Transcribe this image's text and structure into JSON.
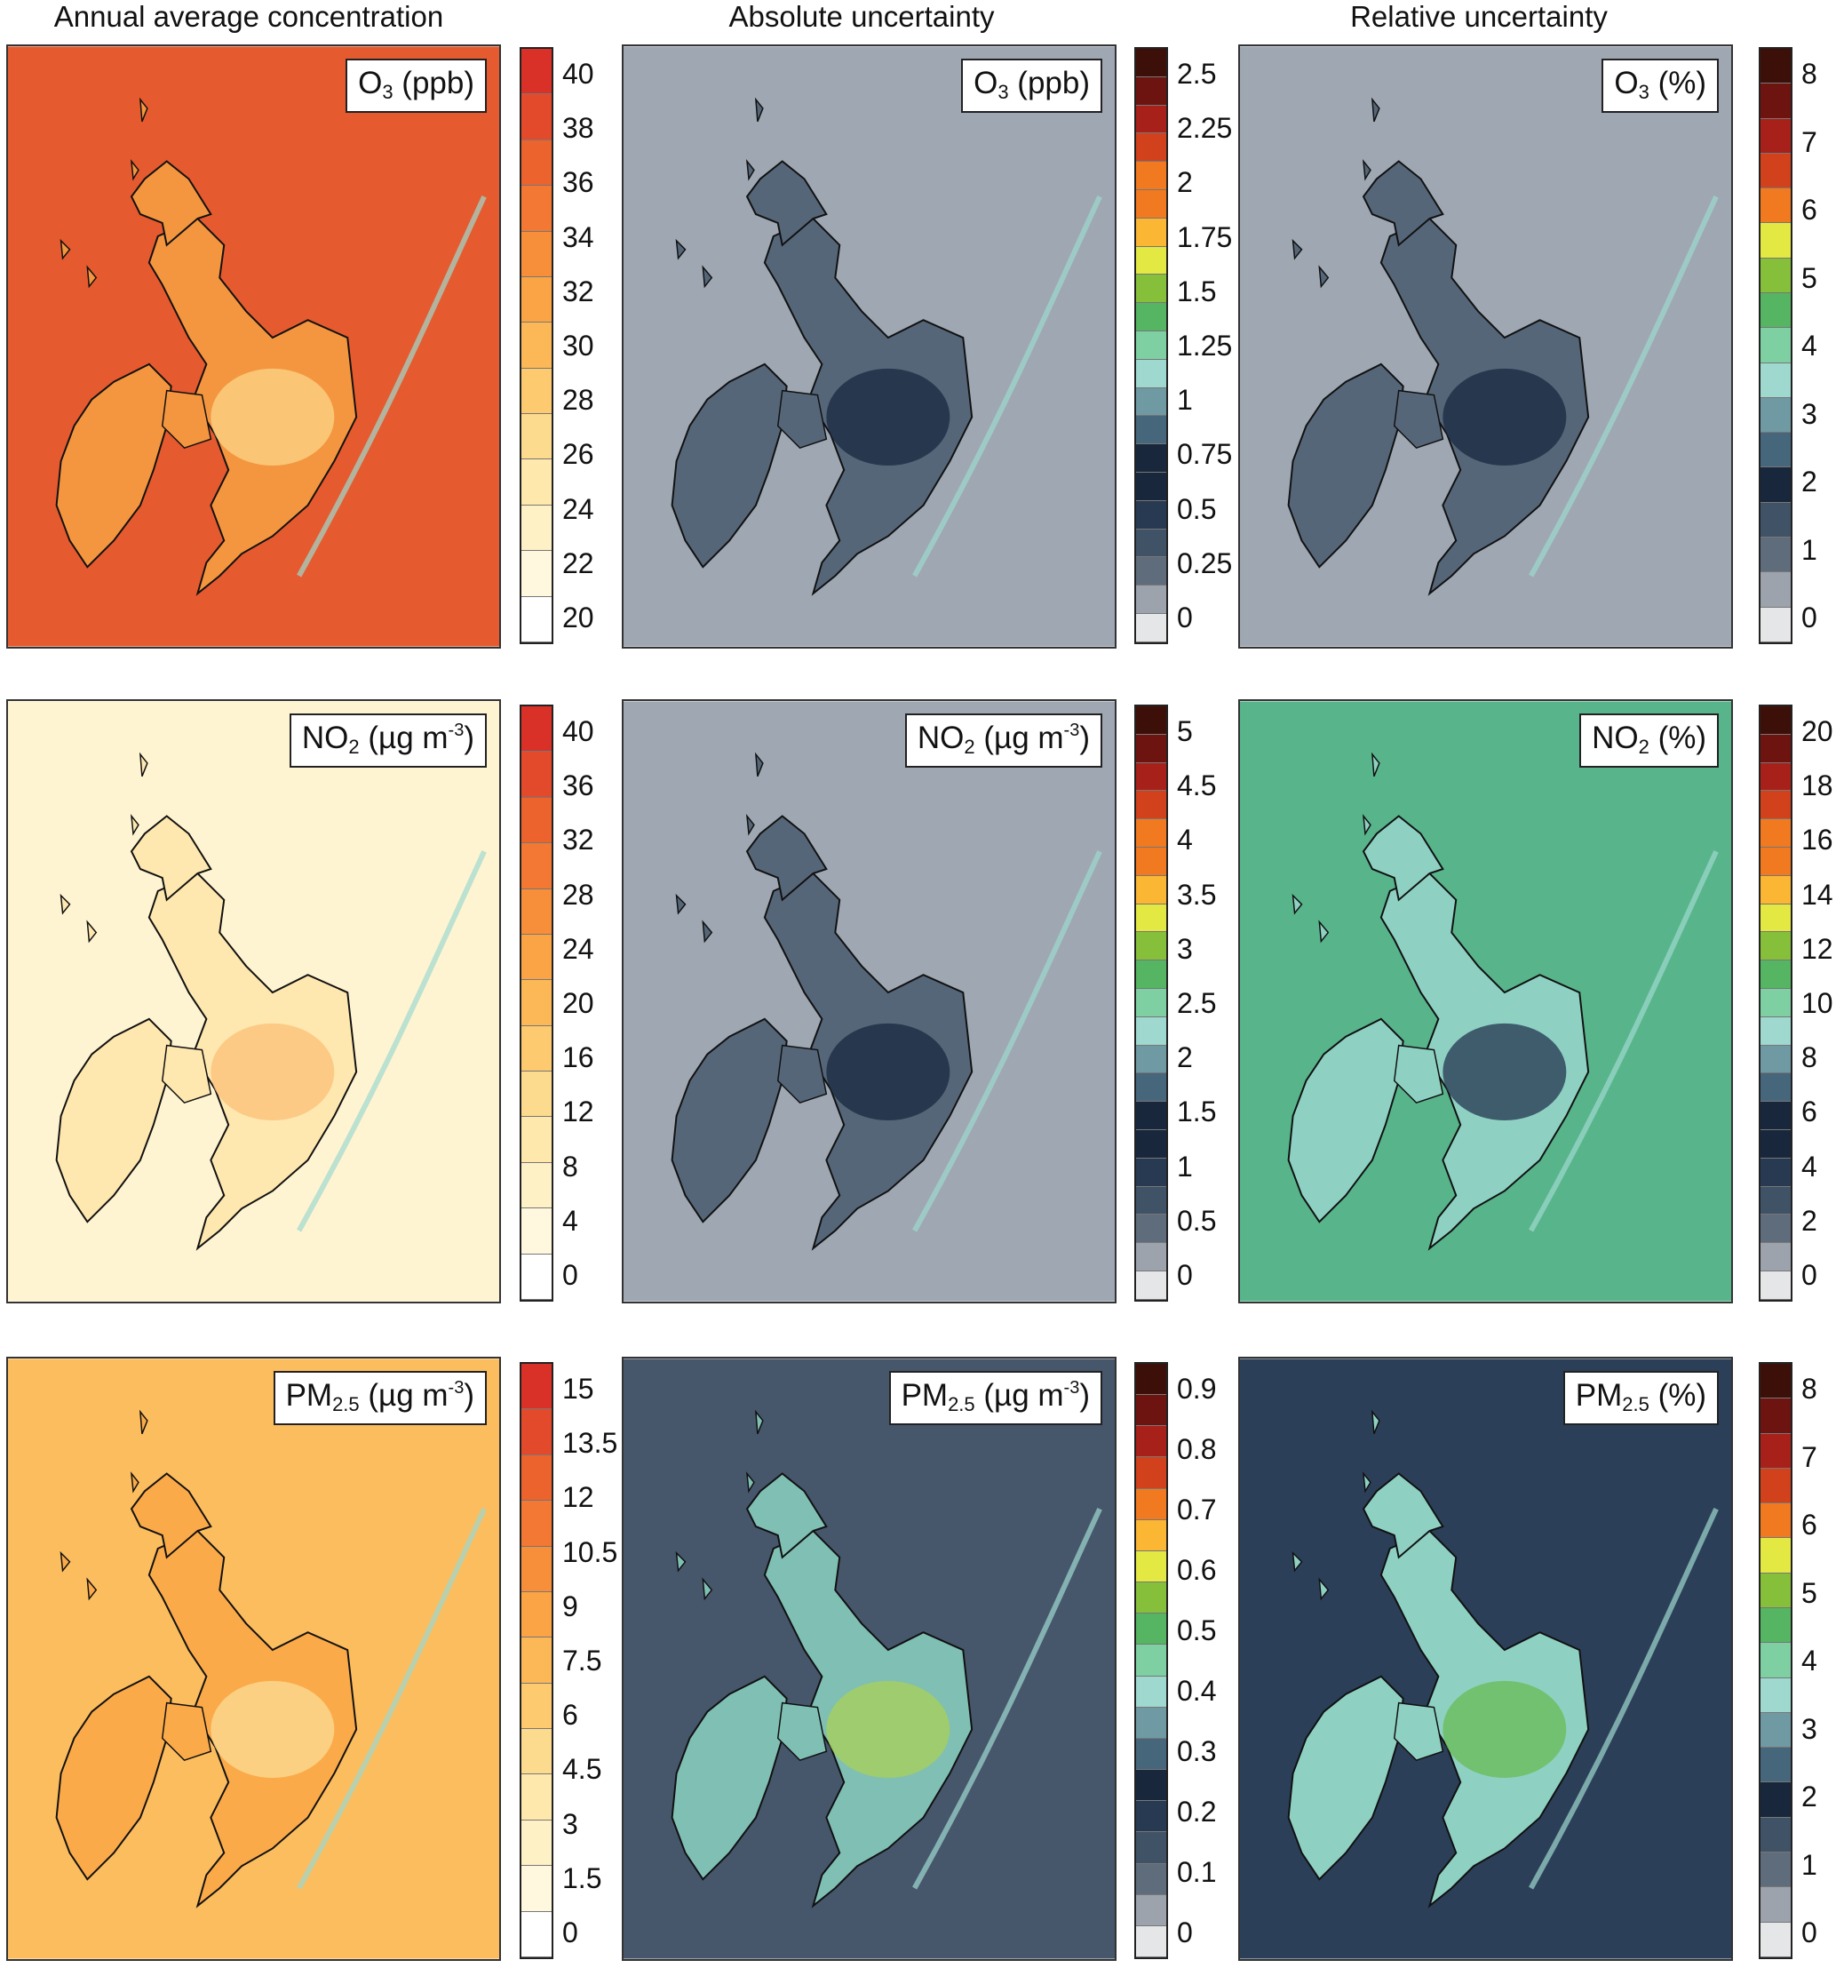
{
  "column_titles": [
    "Annual average concentration",
    "Absolute uncertainty",
    "Relative uncertainty"
  ],
  "palettes": {
    "conc": [
      "#ffffff",
      "#fff8df",
      "#fff1c6",
      "#fee8ab",
      "#fddb8e",
      "#fdca70",
      "#fcb857",
      "#fba446",
      "#f78f3a",
      "#f27833",
      "#ec632d",
      "#e34a2b",
      "#d93027"
    ],
    "unc": [
      "#e5e6e8",
      "#9ca3ad",
      "#5e6c7c",
      "#3f5266",
      "#273a52",
      "#18273c",
      "#46667c",
      "#6f9aa3",
      "#9ed8cf",
      "#7ed0a2",
      "#55b562",
      "#86c03a",
      "#e3e842",
      "#fbb634",
      "#f17a20",
      "#d1411c",
      "#a8201a",
      "#6e1410",
      "#3c1008"
    ]
  },
  "panels": [
    {
      "id": "o3-conc",
      "pollutant": "O",
      "sub": "3",
      "unit": " (ppb)",
      "palette": "conc",
      "sea": "#e55a2e",
      "land": "#f4963f",
      "blob": "#fdd184",
      "ticks": [
        "40",
        "38",
        "36",
        "34",
        "32",
        "30",
        "28",
        "26",
        "24",
        "22",
        "20"
      ]
    },
    {
      "id": "o3-abs",
      "pollutant": "O",
      "sub": "3",
      "unit": " (ppb)",
      "palette": "unc",
      "sea": "#9ea7b2",
      "land": "#566679",
      "blob": "#1b2d44",
      "ticks": [
        "2.5",
        "2.25",
        "2",
        "1.75",
        "1.5",
        "1.25",
        "1",
        "0.75",
        "0.5",
        "0.25",
        "0"
      ]
    },
    {
      "id": "o3-rel",
      "pollutant": "O",
      "sub": "3",
      "unit": " (%)",
      "palette": "unc",
      "sea": "#9ea7b2",
      "land": "#566679",
      "blob": "#1b2d44",
      "ticks": [
        "8",
        "7",
        "6",
        "5",
        "4",
        "3",
        "2",
        "1",
        "0"
      ]
    },
    {
      "id": "no2-conc",
      "pollutant": "NO",
      "sub": "2",
      "unit": " (µg m",
      "sup": "-3",
      "unit2": ")",
      "palette": "conc",
      "sea": "#fff4d2",
      "land": "#fee8b0",
      "blob": "#fbc27a",
      "ticks": [
        "40",
        "36",
        "32",
        "28",
        "24",
        "20",
        "16",
        "12",
        "8",
        "4",
        "0"
      ]
    },
    {
      "id": "no2-abs",
      "pollutant": "NO",
      "sub": "2",
      "unit": " (µg m",
      "sup": "-3",
      "unit2": ")",
      "palette": "unc",
      "sea": "#9ea7b2",
      "land": "#566679",
      "blob": "#1b2d44",
      "ticks": [
        "5",
        "4.5",
        "4",
        "3.5",
        "3",
        "2.5",
        "2",
        "1.5",
        "1",
        "0.5",
        "0"
      ]
    },
    {
      "id": "no2-rel",
      "pollutant": "NO",
      "sub": "2",
      "unit": " (%)",
      "palette": "unc",
      "sea": "#58b48a",
      "land": "#8ed1c3",
      "blob": "#2c3f58",
      "ticks": [
        "20",
        "18",
        "16",
        "14",
        "12",
        "10",
        "8",
        "6",
        "4",
        "2",
        "0"
      ]
    },
    {
      "id": "pm25-conc",
      "pollutant": "PM",
      "sub": "2.5",
      "unit": " (µg m",
      "sup": "-3",
      "unit2": ")",
      "palette": "conc",
      "sea": "#fcbd5e",
      "land": "#fbaa4a",
      "blob": "#fdd990",
      "ticks": [
        "15",
        "13.5",
        "12",
        "10.5",
        "9",
        "7.5",
        "6",
        "4.5",
        "3",
        "1.5",
        "0"
      ]
    },
    {
      "id": "pm25-abs",
      "pollutant": "PM",
      "sub": "2.5",
      "unit": " (µg m",
      "sup": "-3",
      "unit2": ")",
      "palette": "unc",
      "sea": "#46566b",
      "land": "#7fbfb4",
      "blob": "#a6cf5e",
      "ticks": [
        "0.9",
        "0.8",
        "0.7",
        "0.6",
        "0.5",
        "0.4",
        "0.3",
        "0.2",
        "0.1",
        "0"
      ]
    },
    {
      "id": "pm25-rel",
      "pollutant": "PM",
      "sub": "2.5",
      "unit": " (%)",
      "palette": "unc",
      "sea": "#2c3f58",
      "land": "#8ed1c3",
      "blob": "#6cbd5c",
      "ticks": [
        "8",
        "7",
        "6",
        "5",
        "4",
        "3",
        "2",
        "1",
        "0"
      ]
    }
  ]
}
